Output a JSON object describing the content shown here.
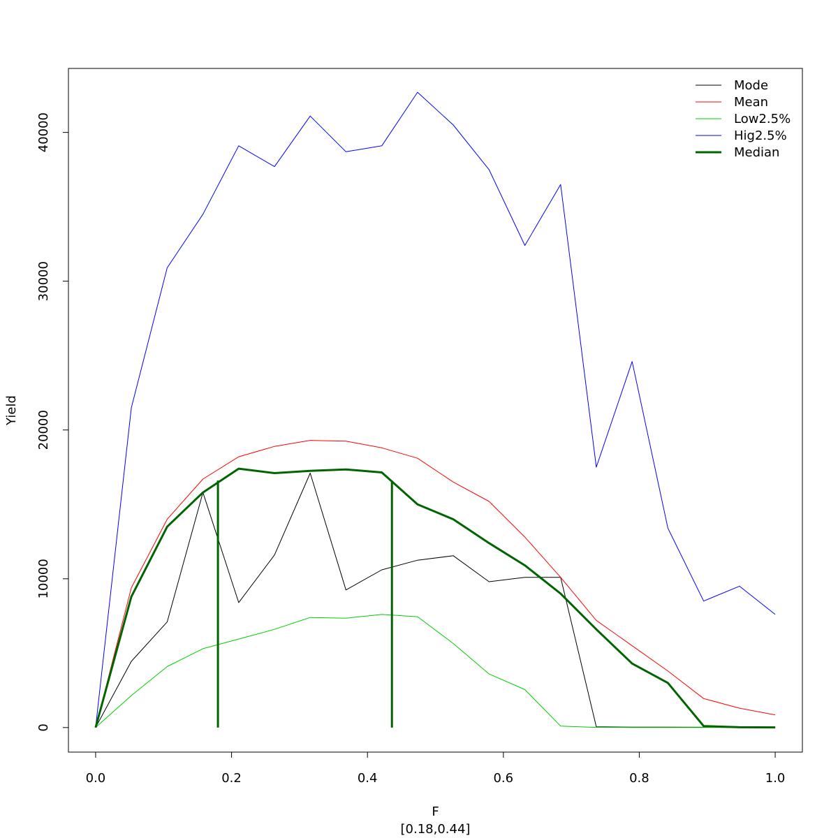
{
  "chart_data": {
    "type": "line",
    "title": "",
    "xlabel": "F",
    "xlabel_sub": "[0.18,0.44]",
    "ylabel": "Yield",
    "xlim": [
      -0.04,
      1.04
    ],
    "ylim": [
      -1650,
      44300
    ],
    "x_ticks": [
      0.0,
      0.2,
      0.4,
      0.6,
      0.8,
      1.0
    ],
    "x_tick_labels": [
      "0.0",
      "0.2",
      "0.4",
      "0.6",
      "0.8",
      "1.0"
    ],
    "y_ticks": [
      0,
      10000,
      20000,
      30000,
      40000
    ],
    "y_tick_labels": [
      "0",
      "10000",
      "20000",
      "30000",
      "40000"
    ],
    "grid": false,
    "legend_position": "top-right",
    "x": [
      0.0,
      0.0526,
      0.1053,
      0.1579,
      0.2105,
      0.2632,
      0.3158,
      0.3684,
      0.4211,
      0.4737,
      0.5263,
      0.5789,
      0.6316,
      0.6842,
      0.7368,
      0.7895,
      0.8421,
      0.8947,
      0.9474,
      1.0
    ],
    "series": [
      {
        "name": "Mode",
        "color": "#000000",
        "width": 1,
        "values": [
          0,
          4450,
          7100,
          15800,
          8400,
          11600,
          17100,
          9250,
          10600,
          11250,
          11550,
          9800,
          10100,
          10100,
          50,
          30,
          30,
          20,
          10,
          5
        ]
      },
      {
        "name": "Mean",
        "color": "#ff0000",
        "width": 1,
        "values": [
          0,
          9400,
          14000,
          16700,
          18200,
          18900,
          19300,
          19250,
          18800,
          18100,
          16500,
          15200,
          12800,
          10100,
          7200,
          5500,
          3800,
          1950,
          1300,
          850
        ]
      },
      {
        "name": "Low2.5%",
        "color": "#00cd00",
        "width": 1,
        "values": [
          0,
          2150,
          4100,
          5300,
          5950,
          6600,
          7400,
          7350,
          7600,
          7450,
          5650,
          3600,
          2550,
          100,
          10,
          5,
          5,
          5,
          5,
          5
        ]
      },
      {
        "name": "Hig2.5%",
        "color": "#0000ff",
        "width": 1,
        "values": [
          0,
          21500,
          30900,
          34500,
          39100,
          37700,
          41100,
          38700,
          39100,
          42700,
          40500,
          37500,
          32400,
          36500,
          17500,
          24600,
          13400,
          8500,
          9500,
          7600
        ]
      },
      {
        "name": "Median",
        "color": "#006400",
        "width": 3,
        "values": [
          0,
          8800,
          13500,
          15800,
          17400,
          17100,
          17250,
          17350,
          17150,
          15000,
          14000,
          12400,
          10900,
          9000,
          6600,
          4300,
          3000,
          100,
          20,
          10
        ]
      }
    ],
    "reference_lines": [
      {
        "x": 0.18,
        "y_top": 16600,
        "color": "#006400"
      },
      {
        "x": 0.436,
        "y_top": 16600,
        "color": "#006400"
      }
    ]
  }
}
